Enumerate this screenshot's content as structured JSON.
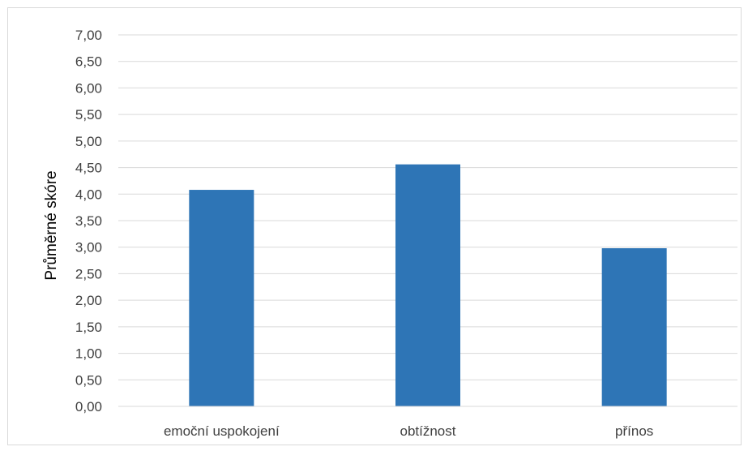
{
  "chart_data": {
    "type": "bar",
    "title": "",
    "xlabel": "",
    "ylabel": "Průměrné skóre",
    "categories": [
      "emoční uspokojení",
      "obtížnost",
      "přínos"
    ],
    "series": [
      {
        "values": [
          4.08,
          4.56,
          2.98
        ],
        "color": "#2e75b6"
      }
    ],
    "ylim": [
      0,
      7
    ],
    "yticks": [
      0,
      0.5,
      1,
      1.5,
      2,
      2.5,
      3,
      3.5,
      4,
      4.5,
      5,
      5.5,
      6,
      6.5,
      7
    ],
    "ytick_labels": [
      "0,00",
      "0,50",
      "1,00",
      "1,50",
      "2,00",
      "2,50",
      "3,00",
      "3,50",
      "4,00",
      "4,50",
      "5,00",
      "5,50",
      "6,00",
      "6,50",
      "7,00"
    ],
    "grid": true,
    "legend": "none"
  }
}
